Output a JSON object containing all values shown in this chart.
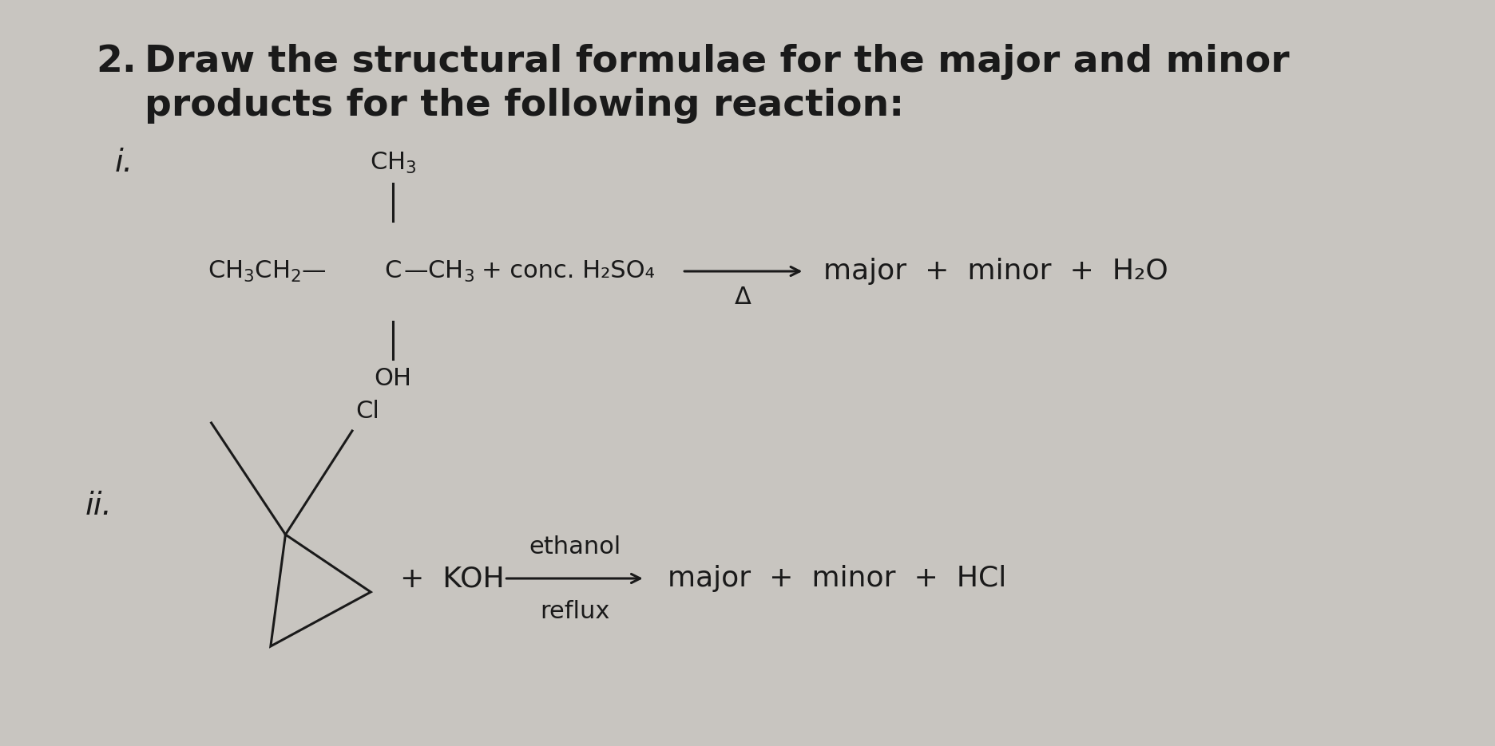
{
  "bg_color": "#c8c5c0",
  "title_num": "2.",
  "title_line1": "Draw the structural formulae for the major and minor",
  "title_line2": "products for the following reaction:",
  "label_i": "i.",
  "label_ii": "ii.",
  "rxn_i_reagent": "+ conc. H₂SO₄",
  "rxn_i_condition": "Δ",
  "rxn_i_products": "major  +  minor  +  H₂O",
  "rxn_ii_reagent1": "ethanol",
  "rxn_ii_reagent2": "reflux",
  "rxn_ii_reactant2": "+  KOH",
  "rxn_ii_products": "major  +  minor  +  HCl",
  "text_color": "#1a1a1a",
  "line_color": "#1a1a1a",
  "title_fontsize": 34,
  "label_fontsize": 28,
  "chem_fontsize": 22,
  "product_fontsize": 26
}
